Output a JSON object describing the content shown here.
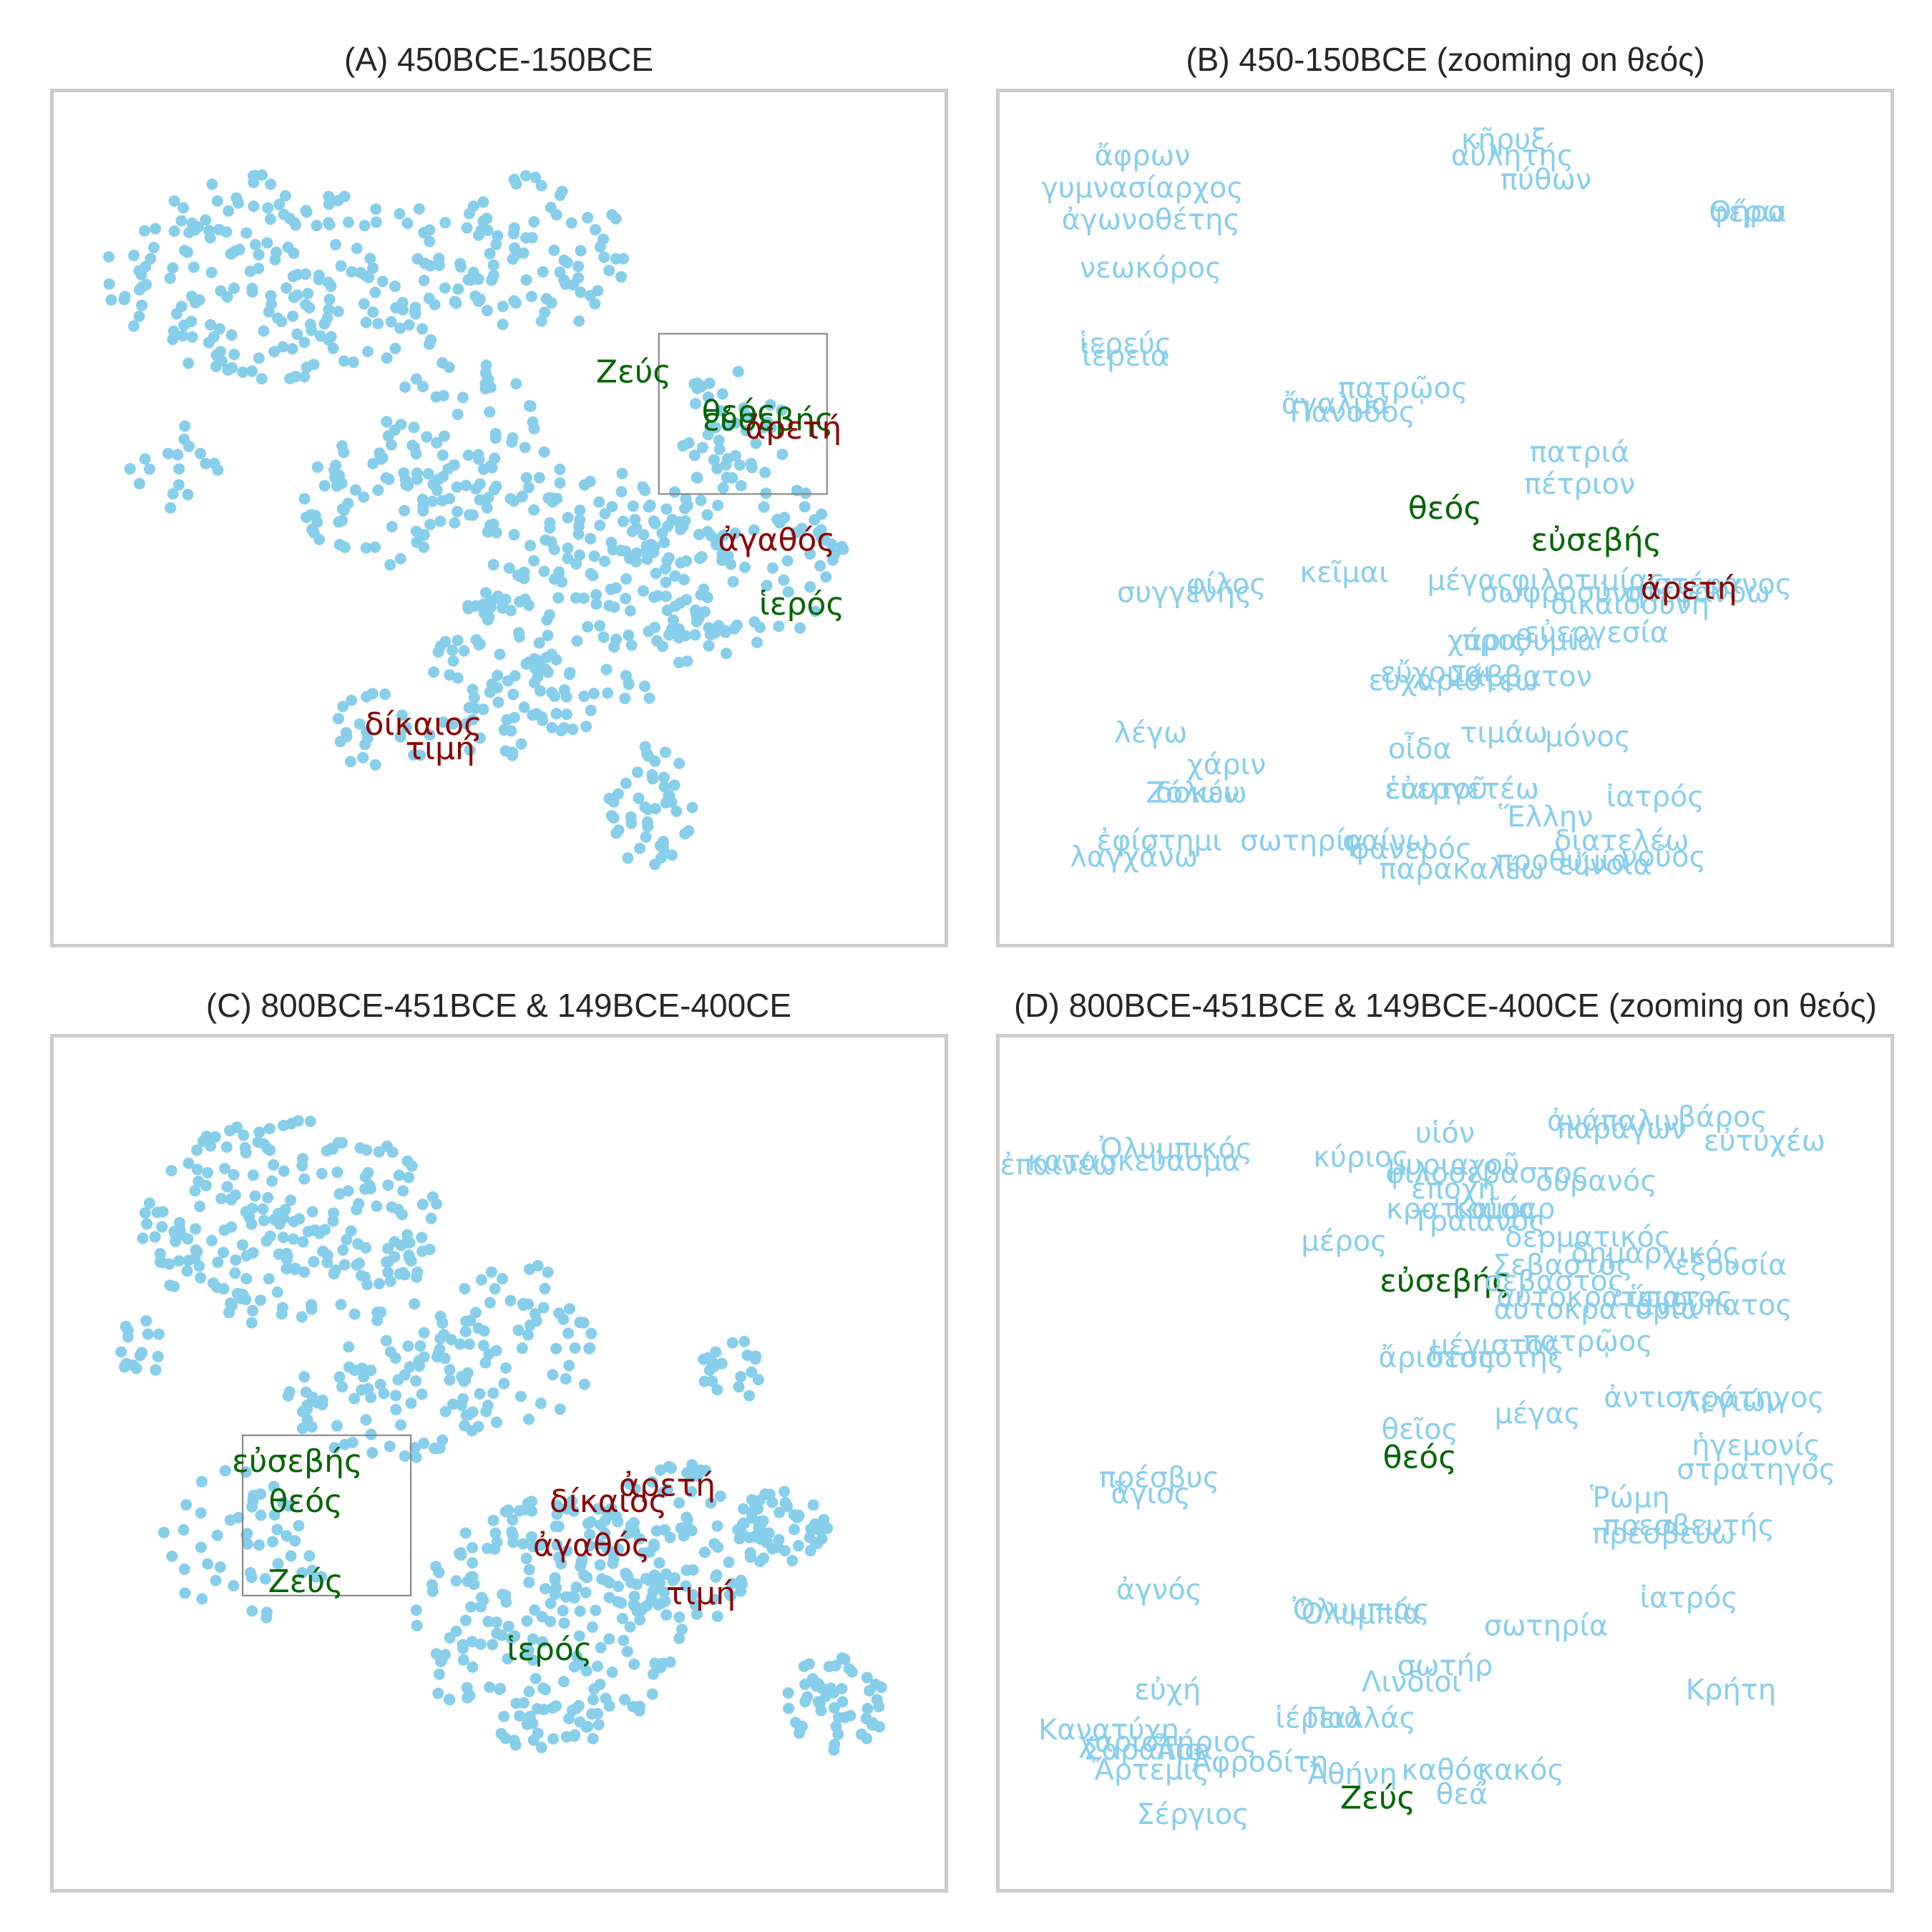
{
  "colors": {
    "point": "#87ceeb",
    "faded_label": "#87ceeb",
    "religious": "#006400",
    "ethical": "#8b0000",
    "frame": "#cccccc",
    "zoom_box": "#808080",
    "title": "#262626"
  },
  "panels": {
    "a": {
      "title": "(A) 450BCE-150BCE"
    },
    "b": {
      "title": "(B) 450-150BCE (zooming on θεός)"
    },
    "c": {
      "title": "(C) 800BCE-451BCE & 149BCE-400CE"
    },
    "d": {
      "title": "(D) 800BCE-451BCE & 149BCE-400CE (zooming on θεός)"
    }
  },
  "chart_data": [
    {
      "type": "scatter",
      "title": "(A) 450BCE-150BCE",
      "xlim": [
        0,
        100
      ],
      "ylim": [
        0,
        100
      ],
      "grid": false,
      "points_seed": 11,
      "highlighted": [
        {
          "label": "Ζεύς",
          "group": "religious",
          "x": 66,
          "y": 68
        },
        {
          "label": "θεός",
          "group": "religious",
          "x": 78.5,
          "y": 63
        },
        {
          "label": "εὐσεβής",
          "group": "religious",
          "x": 82,
          "y": 62
        },
        {
          "label": "ἀρετή",
          "group": "ethical",
          "x": 85,
          "y": 61
        },
        {
          "label": "ἀγαθός",
          "group": "ethical",
          "x": 83,
          "y": 47
        },
        {
          "label": "ἱερός",
          "group": "religious",
          "x": 86,
          "y": 39
        },
        {
          "label": "δίκαιος",
          "group": "ethical",
          "x": 41,
          "y": 24
        },
        {
          "label": "τιμή",
          "group": "ethical",
          "x": 43,
          "y": 21
        }
      ],
      "zoom_box": {
        "x0": 69,
        "x1": 89,
        "y0": 53,
        "y1": 73
      }
    },
    {
      "type": "scatter",
      "title": "(B) 450-150BCE (zooming on θεός)",
      "xlim": [
        0,
        100
      ],
      "ylim": [
        0,
        100
      ],
      "grid": false,
      "labels": [
        {
          "label": "ἄφρων",
          "x": 14,
          "y": 95,
          "group": "faded"
        },
        {
          "label": "γυμνασίαρχος",
          "x": 14,
          "y": 91,
          "group": "faded"
        },
        {
          "label": "ἀγωνοθέτης",
          "x": 15,
          "y": 87,
          "group": "faded"
        },
        {
          "label": "νεωκόρος",
          "x": 15,
          "y": 81,
          "group": "faded"
        },
        {
          "label": "ἱερεύς",
          "x": 12,
          "y": 71.5,
          "group": "faded"
        },
        {
          "label": "ἱέρεια",
          "x": 12,
          "y": 70,
          "group": "faded"
        },
        {
          "label": "κῆρυξ",
          "x": 57,
          "y": 97,
          "group": "faded"
        },
        {
          "label": "αὐλητής",
          "x": 58,
          "y": 95,
          "group": "faded"
        },
        {
          "label": "πύθων",
          "x": 62,
          "y": 92,
          "group": "faded"
        },
        {
          "label": "Θήρα",
          "x": 86,
          "y": 88,
          "group": "faded"
        },
        {
          "label": "φέρω",
          "x": 86,
          "y": 88,
          "group": "faded"
        },
        {
          "label": "πατρῷος",
          "x": 45,
          "y": 66,
          "group": "faded"
        },
        {
          "label": "ἄγαλμα",
          "x": 37,
          "y": 64,
          "group": "faded"
        },
        {
          "label": "Πάνοδος",
          "x": 39,
          "y": 63,
          "group": "faded"
        },
        {
          "label": "πατριά",
          "x": 66,
          "y": 58,
          "group": "faded"
        },
        {
          "label": "πέτριον",
          "x": 66,
          "y": 54,
          "group": "faded"
        },
        {
          "label": "θεός",
          "x": 50,
          "y": 51,
          "group": "religious"
        },
        {
          "label": "εὐσεβής",
          "x": 68,
          "y": 47,
          "group": "religious"
        },
        {
          "label": "κεῖμαι",
          "x": 38,
          "y": 43,
          "group": "faded"
        },
        {
          "label": "φίλος",
          "x": 24,
          "y": 41.5,
          "group": "faded"
        },
        {
          "label": "συγγενής",
          "x": 19,
          "y": 40.5,
          "group": "faded"
        },
        {
          "label": "μέγας",
          "x": 53,
          "y": 42,
          "group": "faded"
        },
        {
          "label": "φιλοτιμίας",
          "x": 67,
          "y": 42,
          "group": "faded"
        },
        {
          "label": "στέφανος",
          "x": 83,
          "y": 41.5,
          "group": "faded"
        },
        {
          "label": "σωφροσύνη",
          "x": 64,
          "y": 40.5,
          "group": "faded"
        },
        {
          "label": "στεφανόω",
          "x": 80,
          "y": 40.5,
          "group": "faded"
        },
        {
          "label": "δικαιοσύνη",
          "x": 72,
          "y": 39,
          "group": "faded"
        },
        {
          "label": "ἀρετή",
          "x": 79,
          "y": 41,
          "group": "ethical"
        },
        {
          "label": "εὐεργεσία",
          "x": 68,
          "y": 35.5,
          "group": "faded"
        },
        {
          "label": "χάρις",
          "x": 55,
          "y": 34.5,
          "group": "faded"
        },
        {
          "label": "προθυμία",
          "x": 60,
          "y": 34.5,
          "group": "faded"
        },
        {
          "label": "εὔχομαι",
          "x": 49,
          "y": 30.5,
          "group": "faded"
        },
        {
          "label": "εὐχαριστέω",
          "x": 51,
          "y": 29.5,
          "group": "faded"
        },
        {
          "label": "Σάββατον",
          "x": 59,
          "y": 30,
          "group": "faded"
        },
        {
          "label": "λέγω",
          "x": 15,
          "y": 23,
          "group": "faded"
        },
        {
          "label": "τιμάω",
          "x": 57,
          "y": 23,
          "group": "faded"
        },
        {
          "label": "μόνος",
          "x": 67,
          "y": 22.5,
          "group": "faded"
        },
        {
          "label": "οἶδα",
          "x": 47,
          "y": 21,
          "group": "faded"
        },
        {
          "label": "χάριν",
          "x": 24,
          "y": 19,
          "group": "faded"
        },
        {
          "label": "δοκέω",
          "x": 21,
          "y": 15.5,
          "group": "faded"
        },
        {
          "label": "Ζόλων",
          "x": 20,
          "y": 15.5,
          "group": "faded"
        },
        {
          "label": "εὐεργετέω",
          "x": 52,
          "y": 16,
          "group": "faded"
        },
        {
          "label": "ἑαυτοῦ",
          "x": 49,
          "y": 16,
          "group": "faded"
        },
        {
          "label": "ἰατρός",
          "x": 75,
          "y": 15,
          "group": "faded"
        },
        {
          "label": "Ἕλλην",
          "x": 62,
          "y": 12.5,
          "group": "faded"
        },
        {
          "label": "ἐφίστημι",
          "x": 16,
          "y": 9.5,
          "group": "faded"
        },
        {
          "label": "σωτηρία",
          "x": 33,
          "y": 9.5,
          "group": "faded"
        },
        {
          "label": "φαίνω",
          "x": 43,
          "y": 9.5,
          "group": "faded"
        },
        {
          "label": "φανερός",
          "x": 46,
          "y": 8.5,
          "group": "faded"
        },
        {
          "label": "διατελέω",
          "x": 71,
          "y": 9.5,
          "group": "faded"
        },
        {
          "label": "λαγχάνω",
          "x": 13,
          "y": 7.5,
          "group": "faded"
        },
        {
          "label": "παρακαλέω",
          "x": 52,
          "y": 6,
          "group": "faded"
        },
        {
          "label": "προθυμία",
          "x": 64,
          "y": 7,
          "group": "faded"
        },
        {
          "label": "εὔνοια",
          "x": 69,
          "y": 6.5,
          "group": "faded"
        },
        {
          "label": "νοῦος",
          "x": 76,
          "y": 7.5,
          "group": "faded"
        }
      ]
    },
    {
      "type": "scatter",
      "title": "(C) 800BCE-451BCE & 149BCE-400CE",
      "xlim": [
        0,
        100
      ],
      "ylim": [
        0,
        100
      ],
      "grid": false,
      "points_seed": 29,
      "highlighted": [
        {
          "label": "εὐσεβής",
          "group": "religious",
          "x": 26,
          "y": 50
        },
        {
          "label": "θεός",
          "group": "religious",
          "x": 27,
          "y": 45
        },
        {
          "label": "Ζεύς",
          "group": "religious",
          "x": 27,
          "y": 35
        },
        {
          "label": "δίκαιος",
          "group": "ethical",
          "x": 63,
          "y": 45
        },
        {
          "label": "ἀρετή",
          "group": "ethical",
          "x": 70,
          "y": 47
        },
        {
          "label": "ἀγαθός",
          "group": "ethical",
          "x": 61,
          "y": 39.5
        },
        {
          "label": "τιμή",
          "group": "ethical",
          "x": 74,
          "y": 33.5
        },
        {
          "label": "ἱερός",
          "group": "religious",
          "x": 56,
          "y": 26.5
        }
      ],
      "zoom_box": {
        "x0": 19.5,
        "x1": 39.5,
        "y0": 33.5,
        "y1": 53.5
      }
    },
    {
      "type": "scatter",
      "title": "(D) 800BCE-451BCE & 149BCE-400CE (zooming on θεός)",
      "xlim": [
        0,
        100
      ],
      "ylim": [
        0,
        100
      ],
      "grid": false,
      "labels": [
        {
          "label": "ἐπαινέω",
          "x": 4,
          "y": 87,
          "group": "faded"
        },
        {
          "label": "κατασκεύασμα",
          "x": 13,
          "y": 87.5,
          "group": "faded"
        },
        {
          "label": "Ὀλυμπικός",
          "x": 18,
          "y": 89,
          "group": "faded"
        },
        {
          "label": "βάρος",
          "x": 83,
          "y": 93,
          "group": "faded"
        },
        {
          "label": "υἱόν",
          "x": 50,
          "y": 91,
          "group": "faded"
        },
        {
          "label": "ἀνάπαλιν",
          "x": 70,
          "y": 92.5,
          "group": "faded"
        },
        {
          "label": "παράγων",
          "x": 71,
          "y": 91.5,
          "group": "faded"
        },
        {
          "label": "εὐτυχέω",
          "x": 88,
          "y": 90,
          "group": "faded"
        },
        {
          "label": "κύριος",
          "x": 40,
          "y": 88,
          "group": "faded"
        },
        {
          "label": "μυριαχοῦ",
          "x": 51,
          "y": 87,
          "group": "faded"
        },
        {
          "label": "φιλοσέβαστος",
          "x": 55,
          "y": 86,
          "group": "faded"
        },
        {
          "label": "οὐρανός",
          "x": 68,
          "y": 85,
          "group": "faded"
        },
        {
          "label": "ἐποχή",
          "x": 51,
          "y": 84,
          "group": "faded"
        },
        {
          "label": "κρατισμός",
          "x": 52,
          "y": 81.5,
          "group": "faded"
        },
        {
          "label": "Καῖσαρ",
          "x": 57,
          "y": 81.5,
          "group": "faded"
        },
        {
          "label": "Τραϊανός",
          "x": 54,
          "y": 80,
          "group": "faded"
        },
        {
          "label": "μέρος",
          "x": 38,
          "y": 77.5,
          "group": "faded"
        },
        {
          "label": "δερματικός",
          "x": 67,
          "y": 78,
          "group": "faded"
        },
        {
          "label": "δημαρχικός",
          "x": 75,
          "y": 76,
          "group": "faded"
        },
        {
          "label": "Σεβαστός",
          "x": 64,
          "y": 74.5,
          "group": "faded"
        },
        {
          "label": "ἐξουσία",
          "x": 84,
          "y": 74.5,
          "group": "faded"
        },
        {
          "label": "εὐσεβής",
          "x": 50,
          "y": 72.5,
          "group": "religious"
        },
        {
          "label": "σεβαστός",
          "x": 63,
          "y": 72.5,
          "group": "faded"
        },
        {
          "label": "αὐτοκράτωρ",
          "x": 67,
          "y": 70.5,
          "group": "faded"
        },
        {
          "label": "ὕπατος",
          "x": 78,
          "y": 70.5,
          "group": "faded"
        },
        {
          "label": "ἀνθύπατος",
          "x": 82,
          "y": 69.5,
          "group": "faded"
        },
        {
          "label": "αὐτοκρατορία",
          "x": 68,
          "y": 69,
          "group": "faded"
        },
        {
          "label": "μέγιστος",
          "x": 56,
          "y": 64.5,
          "group": "faded"
        },
        {
          "label": "πατρῷος",
          "x": 67,
          "y": 65,
          "group": "faded"
        },
        {
          "label": "ἄριστος",
          "x": 49,
          "y": 63,
          "group": "faded"
        },
        {
          "label": "δεσπότης",
          "x": 56,
          "y": 63,
          "group": "faded"
        },
        {
          "label": "ἀντιστράτηγος",
          "x": 82,
          "y": 58,
          "group": "faded"
        },
        {
          "label": "Λεγιών",
          "x": 84,
          "y": 57.5,
          "group": "faded"
        },
        {
          "label": "θεῖος",
          "x": 47,
          "y": 54,
          "group": "faded"
        },
        {
          "label": "μέγας",
          "x": 61,
          "y": 56,
          "group": "faded"
        },
        {
          "label": "θεός",
          "x": 47,
          "y": 50.5,
          "group": "religious"
        },
        {
          "label": "ἡγεμονίς",
          "x": 87,
          "y": 52,
          "group": "faded"
        },
        {
          "label": "στρατηγός",
          "x": 87,
          "y": 49,
          "group": "faded"
        },
        {
          "label": "πρέσβυς",
          "x": 16,
          "y": 48,
          "group": "faded"
        },
        {
          "label": "ἅγιος",
          "x": 15,
          "y": 46,
          "group": "faded"
        },
        {
          "label": "Ῥώμη",
          "x": 72,
          "y": 45.5,
          "group": "faded"
        },
        {
          "label": "πρεσβευτής",
          "x": 79,
          "y": 42,
          "group": "faded"
        },
        {
          "label": "πρέσβεύω",
          "x": 76,
          "y": 41,
          "group": "faded"
        },
        {
          "label": "ἀγνός",
          "x": 16,
          "y": 34,
          "group": "faded"
        },
        {
          "label": "ἰατρός",
          "x": 79,
          "y": 33,
          "group": "faded"
        },
        {
          "label": "Ὀλυμπιάς",
          "x": 40,
          "y": 31.5,
          "group": "faded"
        },
        {
          "label": "Ὀλυμπία",
          "x": 40,
          "y": 31,
          "group": "faded"
        },
        {
          "label": "σωτηρία",
          "x": 62,
          "y": 29.5,
          "group": "faded"
        },
        {
          "label": "σωτήρ",
          "x": 50,
          "y": 24.5,
          "group": "faded"
        },
        {
          "label": "Λινδίοι",
          "x": 46,
          "y": 22.5,
          "group": "faded"
        },
        {
          "label": "εὐχή",
          "x": 17,
          "y": 21.5,
          "group": "faded"
        },
        {
          "label": "Κρήτη",
          "x": 84,
          "y": 21.5,
          "group": "faded"
        },
        {
          "label": "ἱέρεια",
          "x": 35,
          "y": 18,
          "group": "faded"
        },
        {
          "label": "Παλλάς",
          "x": 40,
          "y": 18,
          "group": "faded"
        },
        {
          "label": "Κανατύχη",
          "x": 10,
          "y": 16.5,
          "group": "faded"
        },
        {
          "label": "χαριστήριος",
          "x": 17,
          "y": 15,
          "group": "faded"
        },
        {
          "label": "Σαραπις",
          "x": 14,
          "y": 14,
          "group": "faded"
        },
        {
          "label": "Ἆρα",
          "x": 19,
          "y": 14,
          "group": "faded"
        },
        {
          "label": "Ἀφροδίτη",
          "x": 28,
          "y": 12.5,
          "group": "faded"
        },
        {
          "label": "Ἄρτεμις",
          "x": 15,
          "y": 11.5,
          "group": "faded"
        },
        {
          "label": "Ἀθήνη",
          "x": 39,
          "y": 11,
          "group": "faded"
        },
        {
          "label": "καθός",
          "x": 50,
          "y": 11.5,
          "group": "faded"
        },
        {
          "label": "κακός",
          "x": 59,
          "y": 11.5,
          "group": "faded"
        },
        {
          "label": "θεά",
          "x": 52,
          "y": 8.5,
          "group": "faded"
        },
        {
          "label": "Ζεύς",
          "x": 42,
          "y": 8,
          "group": "religious"
        },
        {
          "label": "Σέργιος",
          "x": 20,
          "y": 6,
          "group": "faded"
        }
      ]
    }
  ]
}
